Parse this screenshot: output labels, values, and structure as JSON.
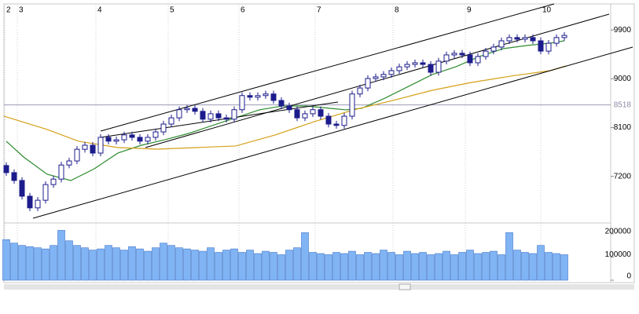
{
  "chart_data": {
    "type": "candlestick",
    "open": [
      7400,
      7270,
      7125,
      6835,
      6620,
      6760,
      7050,
      7150,
      7410,
      7485,
      7700,
      7775,
      7630,
      7920,
      7850,
      7875,
      7965,
      7920,
      7850,
      7920,
      8020,
      8165,
      8280,
      8430,
      8455,
      8400,
      8255,
      8355,
      8280,
      8255,
      8430,
      8690,
      8660,
      8690,
      8720,
      8600,
      8500,
      8430,
      8280,
      8355,
      8430,
      8310,
      8165,
      8140,
      8310,
      8720,
      8830,
      9005,
      9035,
      9080,
      9150,
      9220,
      9265,
      9295,
      9265,
      9120,
      9325,
      9440,
      9470,
      9440,
      9295,
      9410,
      9510,
      9585,
      9700,
      9760,
      9730,
      9760,
      9700,
      9510,
      9655,
      9760
    ],
    "high": [
      7460,
      7330,
      7185,
      6895,
      6820,
      7110,
      7210,
      7470,
      7545,
      7760,
      7835,
      7835,
      7980,
      7980,
      7935,
      8025,
      8025,
      7980,
      7980,
      8080,
      8225,
      8340,
      8490,
      8515,
      8515,
      8460,
      8415,
      8415,
      8340,
      8490,
      8750,
      8750,
      8750,
      8780,
      8780,
      8660,
      8560,
      8490,
      8415,
      8490,
      8490,
      8370,
      8225,
      8370,
      8780,
      8890,
      9065,
      9095,
      9140,
      9210,
      9280,
      9325,
      9355,
      9355,
      9325,
      9385,
      9500,
      9530,
      9530,
      9500,
      9470,
      9570,
      9645,
      9760,
      9820,
      9820,
      9820,
      9820,
      9760,
      9715,
      9820,
      9860
    ],
    "low": [
      7210,
      7065,
      6775,
      6560,
      6560,
      6700,
      6990,
      7090,
      7350,
      7425,
      7640,
      7570,
      7570,
      7790,
      7790,
      7815,
      7860,
      7790,
      7790,
      7860,
      7960,
      8105,
      8220,
      8370,
      8340,
      8195,
      8195,
      8220,
      8195,
      8195,
      8370,
      8600,
      8600,
      8630,
      8540,
      8440,
      8370,
      8220,
      8220,
      8295,
      8250,
      8105,
      8080,
      8080,
      8250,
      8660,
      8770,
      8945,
      8975,
      9020,
      9090,
      9160,
      9205,
      9205,
      9060,
      9060,
      9265,
      9380,
      9380,
      9235,
      9235,
      9350,
      9450,
      9525,
      9640,
      9670,
      9670,
      9640,
      9450,
      9450,
      9595,
      9700
    ],
    "close": [
      7270,
      7125,
      6835,
      6620,
      6760,
      7050,
      7150,
      7410,
      7485,
      7700,
      7775,
      7630,
      7920,
      7850,
      7875,
      7965,
      7920,
      7850,
      7920,
      8020,
      8165,
      8280,
      8430,
      8455,
      8400,
      8255,
      8355,
      8280,
      8255,
      8430,
      8690,
      8660,
      8690,
      8720,
      8600,
      8500,
      8430,
      8280,
      8355,
      8430,
      8310,
      8165,
      8140,
      8310,
      8720,
      8830,
      9005,
      9035,
      9080,
      9150,
      9220,
      9265,
      9295,
      9265,
      9120,
      9325,
      9440,
      9470,
      9440,
      9295,
      9410,
      9510,
      9585,
      9700,
      9760,
      9730,
      9760,
      9700,
      9510,
      9655,
      9760,
      9800
    ],
    "up_color": "#ffffff",
    "down_color": "#1c1c8c",
    "xlim": [
      -0.3,
      76.7
    ],
    "xticks": [
      {
        "value": -0.2,
        "label": "2"
      },
      {
        "value": 1.4,
        "label": "3"
      },
      {
        "value": 11.4,
        "label": "4"
      },
      {
        "value": 20.6,
        "label": "5"
      },
      {
        "value": 29.6,
        "label": "6"
      },
      {
        "value": 39.3,
        "label": "7"
      },
      {
        "value": 49.2,
        "label": "8"
      },
      {
        "value": 58.4,
        "label": "9"
      },
      {
        "value": 68.0,
        "label": "10"
      }
    ],
    "ylim": [
      6400,
      10380
    ],
    "yticks": [
      7200,
      8100,
      9000,
      9900
    ],
    "current_price": 8518,
    "lines": [
      {
        "color": "#2e8b2e",
        "x": [
          0,
          2.2,
          5.2,
          8.2,
          11.2,
          14.2,
          17.2,
          20.2,
          23.2,
          26.2,
          29.2,
          32.2,
          35.2,
          38.2,
          41.2,
          43.2,
          45.2,
          48.2,
          51.2,
          54.2,
          57.2,
          60.2,
          63.2,
          66.2,
          69.2,
          71
        ],
        "values": [
          7848,
          7558,
          7240,
          7124,
          7341,
          7631,
          7775,
          7877,
          7992,
          8137,
          8282,
          8427,
          8499,
          8499,
          8455,
          8427,
          8455,
          8644,
          8861,
          9078,
          9222,
          9411,
          9555,
          9613,
          9657,
          9700
        ]
      },
      {
        "color": "#d4a017",
        "x": [
          -0.3,
          5.2,
          9.2,
          14.2,
          19.2,
          24.2,
          29.2,
          34.2,
          39.2,
          44.2,
          49.2,
          54.2,
          59.2,
          64.2,
          69.2,
          71.2
        ],
        "values": [
          8311,
          8065,
          7848,
          7732,
          7703,
          7732,
          7761,
          7964,
          8210,
          8427,
          8601,
          8788,
          8933,
          9049,
          9150,
          9237
        ]
      }
    ],
    "volume": {
      "color": "#80b4f4",
      "values": [
        175000,
        160000,
        150000,
        145000,
        140000,
        135000,
        150000,
        215000,
        170000,
        150000,
        140000,
        130000,
        135000,
        150000,
        140000,
        130000,
        145000,
        135000,
        125000,
        140000,
        160000,
        150000,
        140000,
        135000,
        130000,
        125000,
        140000,
        120000,
        130000,
        135000,
        120000,
        130000,
        115000,
        125000,
        120000,
        110000,
        130000,
        140000,
        205000,
        120000,
        115000,
        110000,
        120000,
        115000,
        125000,
        110000,
        120000,
        115000,
        130000,
        120000,
        110000,
        125000,
        115000,
        120000,
        110000,
        115000,
        125000,
        110000,
        120000,
        130000,
        115000,
        120000,
        125000,
        110000,
        205000,
        130000,
        120000,
        115000,
        150000,
        120000,
        115000,
        110000
      ],
      "ylim": [
        0,
        230000
      ],
      "yticks": [
        0,
        100000,
        200000
      ]
    }
  }
}
